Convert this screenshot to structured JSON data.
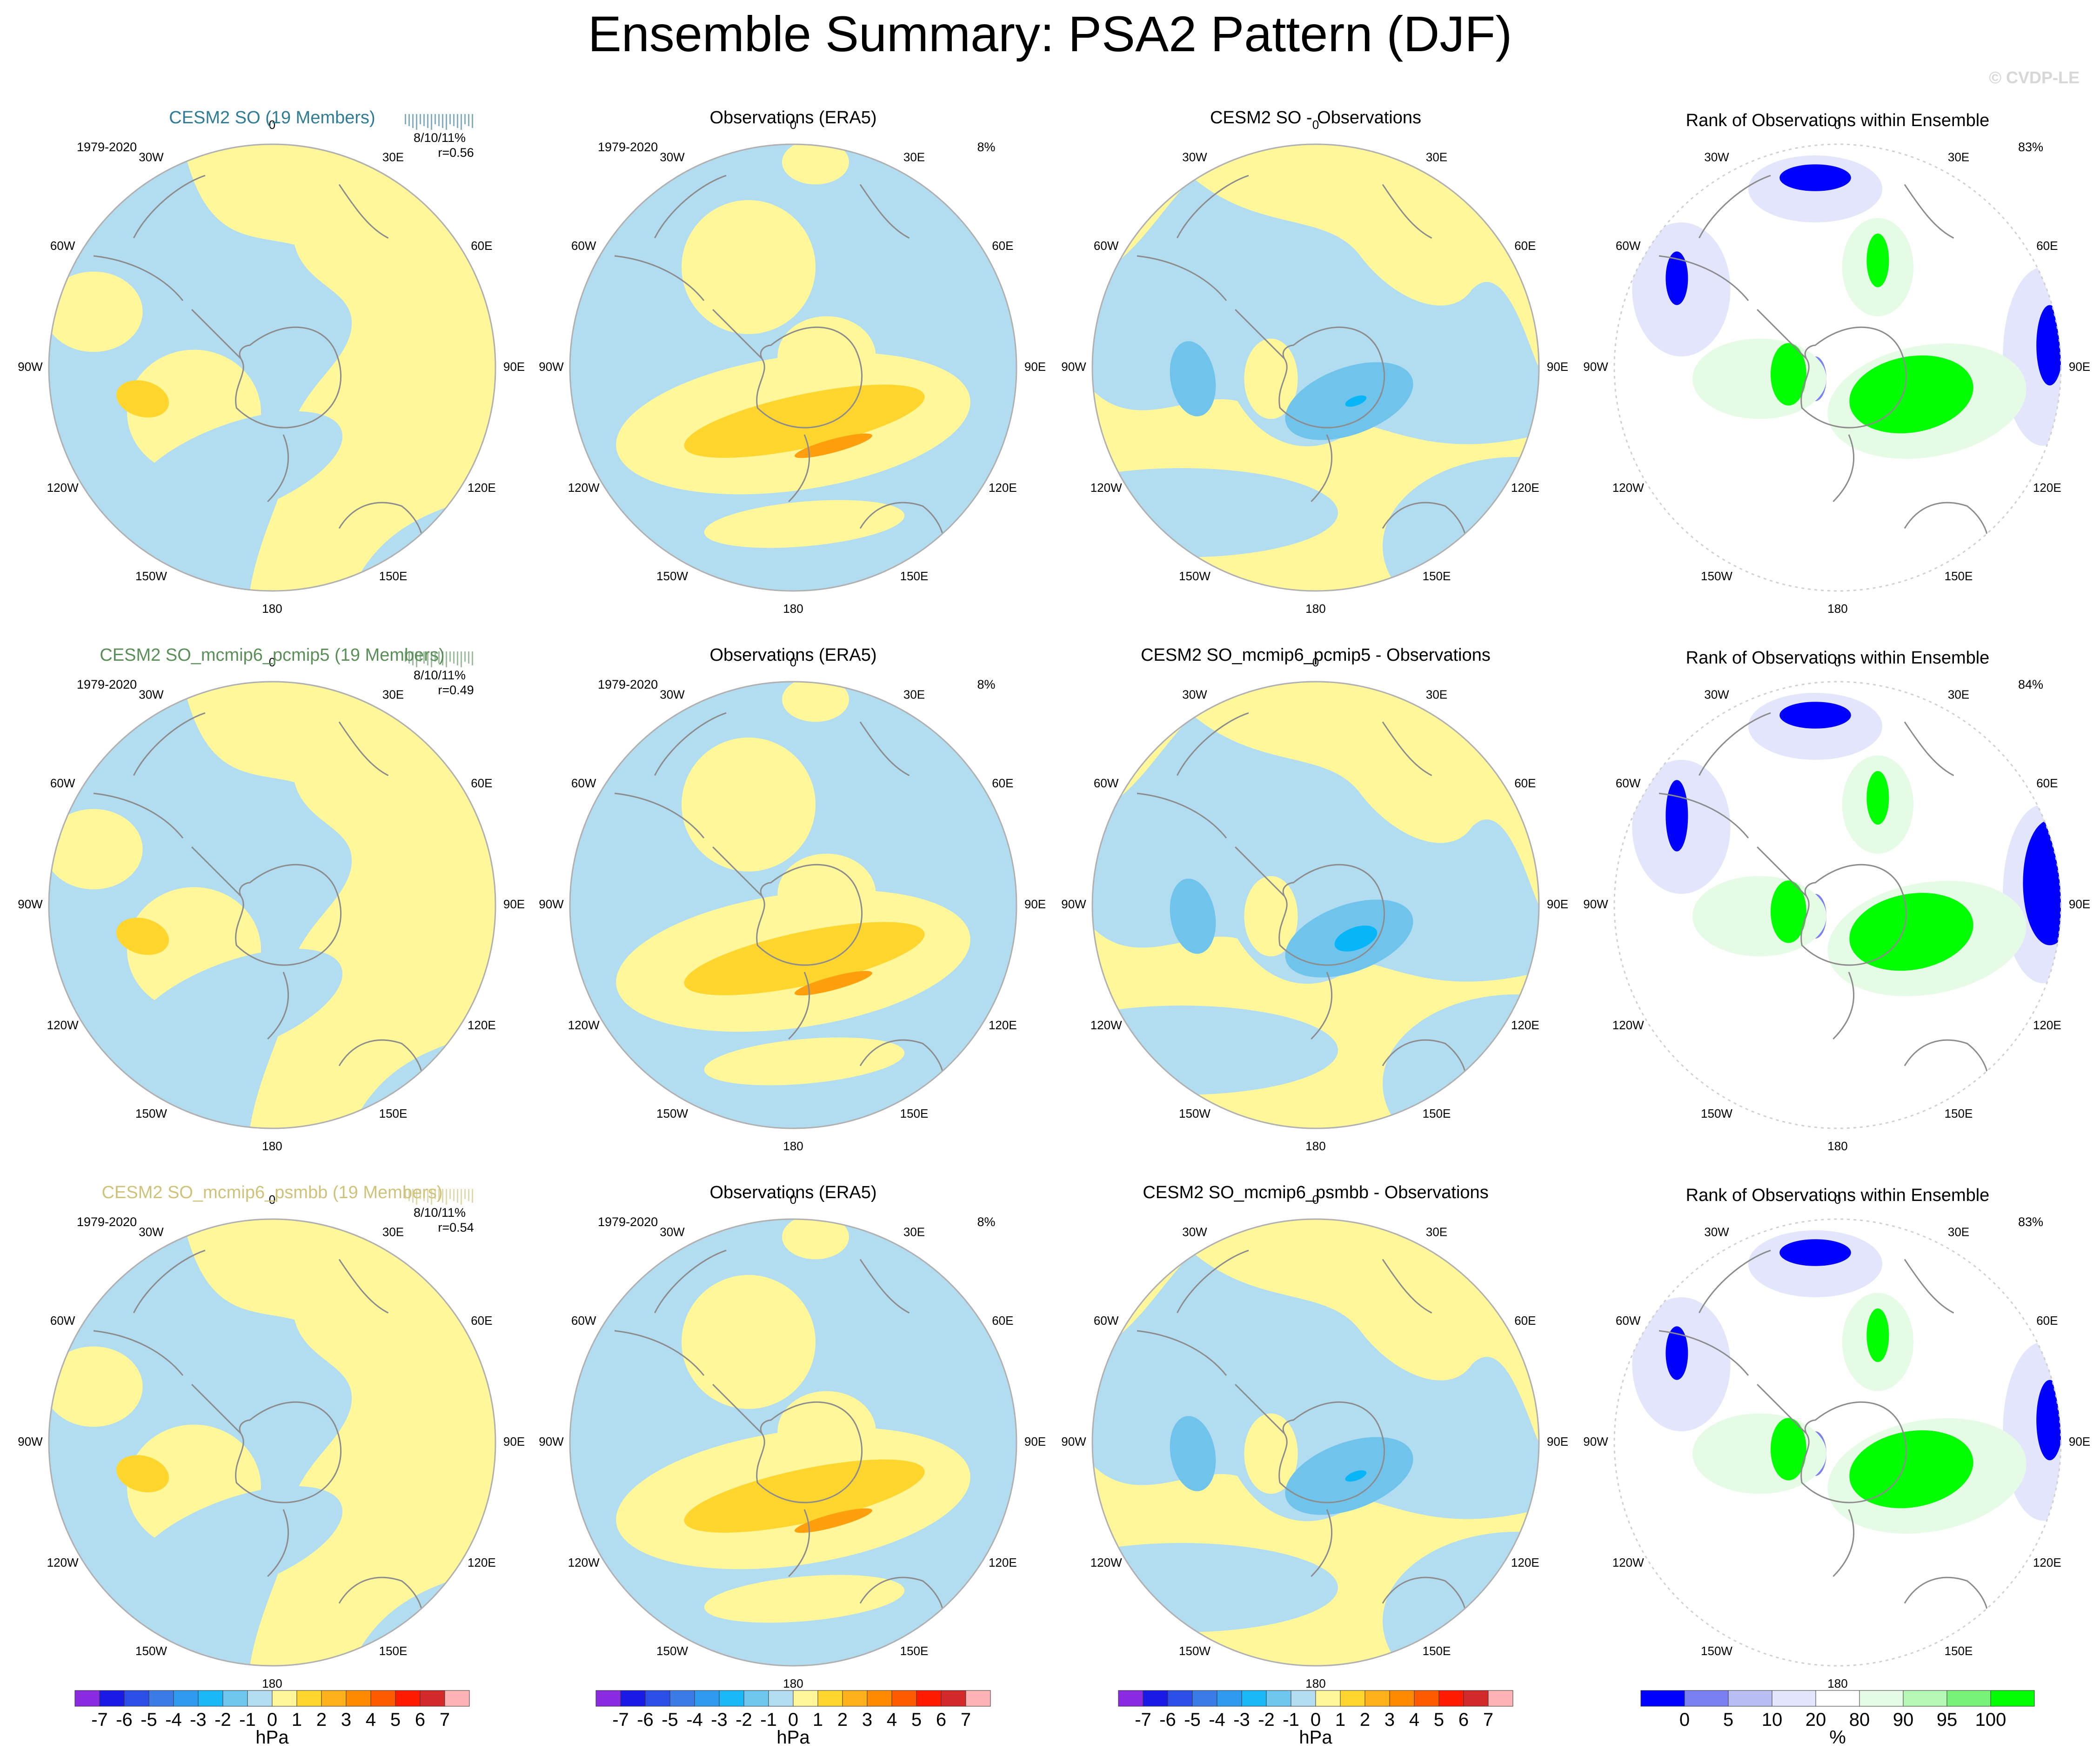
{
  "title": "Ensemble Summary: PSA2 Pattern (DJF)",
  "watermark": "© CVDP-LE",
  "colors": {
    "negative": "#b2dcf0",
    "positive": "#fff799",
    "pos_mid": "#ffd52e",
    "pos_strong": "#ff9f0e",
    "neg_mid": "#70c4ec",
    "neg_strong": "#08b6f7",
    "rank_low": "#0000ff",
    "rank_low2": "#7a7ff2",
    "rank_low3": "#b8bdf2",
    "rank_low4": "#e2e5fb",
    "rank_high4": "#e6fbe6",
    "rank_high3": "#b5f7b5",
    "rank_high2": "#79f279",
    "rank_high": "#00ff00",
    "coast": "#8c8c8c",
    "frame": "#b0b0b0"
  },
  "longitude_labels": [
    "0",
    "30E",
    "60E",
    "90E",
    "120E",
    "150E",
    "180",
    "150W",
    "120W",
    "90W",
    "60W",
    "30W"
  ],
  "rows": [
    {
      "ensemble": {
        "title": "CESM2 SO (19 Members)",
        "title_color": "#2e7c95",
        "period": "1979-2020",
        "stats": "8/10/11%",
        "corr": "r=0.56",
        "max_pos_level": 2,
        "max_neg_level": 0
      },
      "observations": {
        "title": "Observations (ERA5)",
        "period": "1979-2020",
        "pct": "8%"
      },
      "difference": {
        "title": "CESM2 SO - Observations",
        "max_neg_level": 2
      },
      "rank": {
        "title": "Rank of Observations within Ensemble",
        "pct": "83%"
      }
    },
    {
      "ensemble": {
        "title": "CESM2 SO_mcmip6_pcmip5 (19 Members)",
        "title_color": "#5a8f58",
        "period": "1979-2020",
        "stats": "8/10/11%",
        "corr": "r=0.49",
        "max_pos_level": 2,
        "max_neg_level": 0
      },
      "observations": {
        "title": "Observations (ERA5)",
        "period": "1979-2020",
        "pct": "8%"
      },
      "difference": {
        "title": "CESM2 SO_mcmip6_pcmip5 - Observations",
        "max_neg_level": 3
      },
      "rank": {
        "title": "Rank of Observations within Ensemble",
        "pct": "84%"
      }
    },
    {
      "ensemble": {
        "title": "CESM2 SO_mcmip6_psmbb (19 Members)",
        "title_color": "#cfc27a",
        "period": "1979-2020",
        "stats": "8/10/11%",
        "corr": "r=0.54",
        "max_pos_level": 2,
        "max_neg_level": 0
      },
      "observations": {
        "title": "Observations (ERA5)",
        "period": "1979-2020",
        "pct": "8%"
      },
      "difference": {
        "title": "CESM2 SO_mcmip6_psmbb - Observations",
        "max_neg_level": 2
      },
      "rank": {
        "title": "Rank of Observations within Ensemble",
        "pct": "83%"
      }
    }
  ],
  "chart_data": [
    {
      "type": "heatmap",
      "title": "Ensemble Summary: PSA2 Pattern (DJF)",
      "description_of_encoding": "Polar stereographic maps (Southern Hemisphere) of PSA2 sea-level-pressure pattern; colors in hPa",
      "colorbar_hpa": {
        "levels": [
          -7,
          -6,
          -5,
          -4,
          -3,
          -2,
          -1,
          0,
          1,
          2,
          3,
          4,
          5,
          6,
          7
        ],
        "tick_labels": [
          "-7",
          "-6",
          "-5",
          "-4",
          "-3",
          "-2",
          "-1",
          "0",
          "1",
          "2",
          "3",
          "4",
          "5",
          "6",
          "7"
        ],
        "colors": [
          "#8a2be2",
          "#1a1ae6",
          "#2b4ee6",
          "#3a7be6",
          "#2f9bf0",
          "#1bb8f7",
          "#6fc6ee",
          "#b2dcf0",
          "#fff799",
          "#ffd52e",
          "#ffb11c",
          "#ff8a00",
          "#ff5a00",
          "#ff1a00",
          "#d22a2a",
          "#ffb3b3"
        ],
        "unit": "hPa"
      },
      "colorbar_rank": {
        "tick_labels": [
          "0",
          "5",
          "10",
          "20",
          "80",
          "90",
          "95",
          "100"
        ],
        "colors": [
          "#0000ff",
          "#7a7ff2",
          "#b8bdf2",
          "#e2e5fb",
          "#ffffff",
          "#e6fbe6",
          "#b5f7b5",
          "#79f279",
          "#00ff00"
        ],
        "unit": "%"
      },
      "ensemble_pattern_peak_hpa": [
        1.5,
        1.5,
        1.5
      ],
      "observed_pattern_peak_hpa": 2.5,
      "difference_trough_hpa": [
        -2.5,
        -2.5,
        -2.5
      ],
      "pattern_correlation": [
        0.56,
        0.49,
        0.54
      ],
      "rank_fraction_pct": [
        83,
        84,
        83
      ]
    }
  ],
  "colorbars": [
    {
      "ticks": [
        "-7",
        "-6",
        "-5",
        "-4",
        "-3",
        "-2",
        "-1",
        "0",
        "1",
        "2",
        "3",
        "4",
        "5",
        "6",
        "7"
      ],
      "unit": "hPa"
    },
    {
      "ticks": [
        "-7",
        "-6",
        "-5",
        "-4",
        "-3",
        "-2",
        "-1",
        "0",
        "1",
        "2",
        "3",
        "4",
        "5",
        "6",
        "7"
      ],
      "unit": "hPa"
    },
    {
      "ticks": [
        "-7",
        "-6",
        "-5",
        "-4",
        "-3",
        "-2",
        "-1",
        "0",
        "1",
        "2",
        "3",
        "4",
        "5",
        "6",
        "7"
      ],
      "unit": "hPa"
    },
    {
      "ticks": [
        "0",
        "5",
        "10",
        "20",
        "80",
        "90",
        "95",
        "100"
      ],
      "unit": "%"
    }
  ]
}
